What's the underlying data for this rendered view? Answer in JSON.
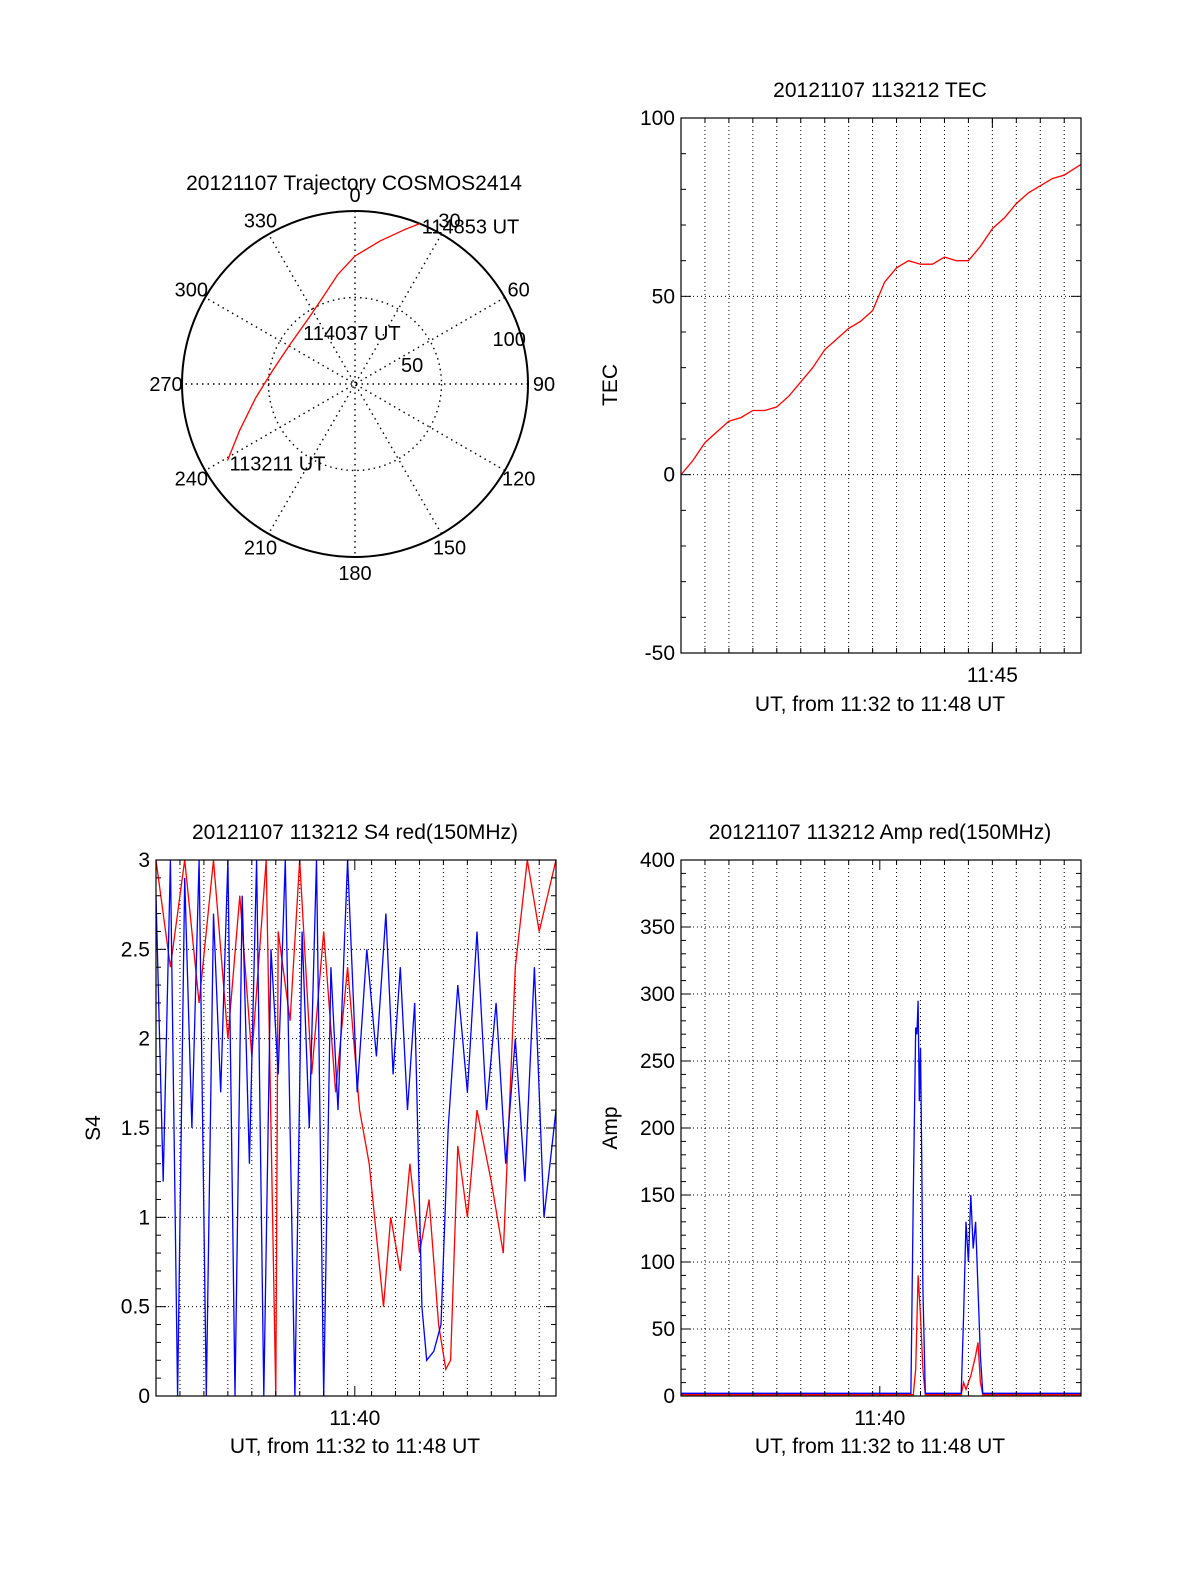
{
  "chart_data": [
    {
      "id": "trajectory",
      "type": "polar",
      "title": "20121107 Trajectory COSMOS2414",
      "radial_max": 100,
      "radial_ticks": [
        50,
        100
      ],
      "angle_labels": [
        "0",
        "30",
        "60",
        "90",
        "120",
        "150",
        "180",
        "210",
        "240",
        "270",
        "300",
        "330"
      ],
      "grid": true,
      "series": [
        {
          "color": "#ff0000",
          "points": [
            {
              "az": 239,
              "zen": 86
            },
            {
              "az": 248,
              "zen": 72
            },
            {
              "az": 262,
              "zen": 58
            },
            {
              "az": 280,
              "zen": 48
            },
            {
              "az": 301,
              "zen": 44
            },
            {
              "az": 323,
              "zen": 46
            },
            {
              "az": 339,
              "zen": 53
            },
            {
              "az": 351,
              "zen": 64
            },
            {
              "az": 0,
              "zen": 74
            },
            {
              "az": 10,
              "zen": 84
            },
            {
              "az": 18,
              "zen": 94
            },
            {
              "az": 22,
              "zen": 100
            }
          ]
        }
      ],
      "annotations": [
        {
          "text": "113211 UT",
          "az": 239,
          "zen": 86
        },
        {
          "text": "114037 UT",
          "az": 315,
          "zen": 44
        },
        {
          "text": "114853 UT",
          "az": 22,
          "zen": 100
        }
      ]
    },
    {
      "id": "tec",
      "type": "line",
      "title": "20121107 113212 TEC",
      "xlabel": "UT, from 11:32 to 11:48 UT",
      "ylabel": "TEC",
      "xlim": [
        0,
        16.7
      ],
      "ylim": [
        -50,
        100
      ],
      "yticks": [
        -50,
        0,
        50,
        100
      ],
      "xticks": [
        {
          "x": 13,
          "label": "11:45"
        }
      ],
      "grid": true,
      "series": [
        {
          "color": "#ff0000",
          "points": [
            [
              0,
              0
            ],
            [
              0.5,
              4
            ],
            [
              1,
              9
            ],
            [
              1.5,
              12
            ],
            [
              2,
              15
            ],
            [
              2.5,
              16
            ],
            [
              3,
              18
            ],
            [
              3.5,
              18
            ],
            [
              4,
              19
            ],
            [
              4.5,
              22
            ],
            [
              5,
              26
            ],
            [
              5.5,
              30
            ],
            [
              6,
              35
            ],
            [
              6.5,
              38
            ],
            [
              7,
              41
            ],
            [
              7.5,
              43
            ],
            [
              8,
              46
            ],
            [
              8.5,
              54
            ],
            [
              9,
              58
            ],
            [
              9.5,
              60
            ],
            [
              10,
              59
            ],
            [
              10.5,
              59
            ],
            [
              11,
              61
            ],
            [
              11.5,
              60
            ],
            [
              12,
              60
            ],
            [
              12.5,
              64
            ],
            [
              13,
              69
            ],
            [
              13.5,
              72
            ],
            [
              14,
              76
            ],
            [
              14.5,
              79
            ],
            [
              15,
              81
            ],
            [
              15.5,
              83
            ],
            [
              16,
              84
            ],
            [
              16.7,
              87
            ]
          ]
        }
      ]
    },
    {
      "id": "s4",
      "type": "line",
      "title": "20121107 113212 S4 red(150MHz)",
      "xlabel": "UT, from 11:32 to 11:48 UT",
      "ylabel": "S4",
      "xlim": [
        0,
        16.7
      ],
      "ylim": [
        0,
        3
      ],
      "yticks": [
        0,
        0.5,
        1,
        1.5,
        2,
        2.5,
        3
      ],
      "xticks": [
        {
          "x": 8.3,
          "label": "11:40"
        }
      ],
      "grid": true,
      "series": [
        {
          "color": "#ff0000",
          "points": [
            [
              0,
              3
            ],
            [
              0.6,
              2.4
            ],
            [
              1.2,
              3
            ],
            [
              1.8,
              2.2
            ],
            [
              2.4,
              3
            ],
            [
              3,
              2.0
            ],
            [
              3.5,
              2.8
            ],
            [
              4,
              1.9
            ],
            [
              4.6,
              3
            ],
            [
              5,
              0
            ],
            [
              5.1,
              2.6
            ],
            [
              5.6,
              2.1
            ],
            [
              6,
              3
            ],
            [
              6.5,
              1.8
            ],
            [
              7,
              2.6
            ],
            [
              7.5,
              1.7
            ],
            [
              8,
              2.4
            ],
            [
              8.5,
              1.6
            ],
            [
              8.9,
              1.3
            ],
            [
              9.2,
              0.9
            ],
            [
              9.5,
              0.5
            ],
            [
              9.8,
              1.0
            ],
            [
              10.2,
              0.7
            ],
            [
              10.6,
              1.3
            ],
            [
              11,
              0.8
            ],
            [
              11.4,
              1.1
            ],
            [
              11.8,
              0.4
            ],
            [
              12.1,
              0.15
            ],
            [
              12.3,
              0.2
            ],
            [
              12.6,
              1.4
            ],
            [
              13,
              1.0
            ],
            [
              13.4,
              1.6
            ],
            [
              14,
              1.2
            ],
            [
              14.5,
              0.8
            ],
            [
              15,
              2.4
            ],
            [
              15.5,
              3
            ],
            [
              16,
              2.6
            ],
            [
              16.7,
              3
            ]
          ]
        },
        {
          "color": "#0000ff",
          "points": [
            [
              0,
              2.8
            ],
            [
              0.3,
              1.2
            ],
            [
              0.6,
              3
            ],
            [
              0.9,
              0
            ],
            [
              1.2,
              2.9
            ],
            [
              1.5,
              1.5
            ],
            [
              1.8,
              3
            ],
            [
              2.1,
              0
            ],
            [
              2.4,
              2.7
            ],
            [
              2.7,
              1.7
            ],
            [
              3,
              3
            ],
            [
              3.3,
              0
            ],
            [
              3.6,
              2.8
            ],
            [
              3.9,
              1.3
            ],
            [
              4.2,
              3
            ],
            [
              4.5,
              0
            ],
            [
              4.8,
              2.5
            ],
            [
              5.1,
              1.8
            ],
            [
              5.4,
              3
            ],
            [
              5.8,
              0
            ],
            [
              6.1,
              2.6
            ],
            [
              6.4,
              1.5
            ],
            [
              6.7,
              3
            ],
            [
              7,
              0
            ],
            [
              7.3,
              2.4
            ],
            [
              7.6,
              1.6
            ],
            [
              8,
              3
            ],
            [
              8.4,
              1.7
            ],
            [
              8.8,
              2.5
            ],
            [
              9.2,
              1.9
            ],
            [
              9.6,
              2.7
            ],
            [
              9.9,
              1.8
            ],
            [
              10.2,
              2.4
            ],
            [
              10.5,
              1.6
            ],
            [
              10.8,
              2.2
            ],
            [
              11.1,
              0.5
            ],
            [
              11.3,
              0.2
            ],
            [
              11.6,
              0.25
            ],
            [
              11.9,
              0.4
            ],
            [
              12.2,
              1.5
            ],
            [
              12.6,
              2.3
            ],
            [
              13,
              1.7
            ],
            [
              13.4,
              2.6
            ],
            [
              13.8,
              1.6
            ],
            [
              14.2,
              2.2
            ],
            [
              14.6,
              1.3
            ],
            [
              15,
              2.0
            ],
            [
              15.4,
              1.2
            ],
            [
              15.8,
              2.4
            ],
            [
              16.2,
              1.0
            ],
            [
              16.7,
              1.6
            ]
          ]
        }
      ]
    },
    {
      "id": "amp",
      "type": "line",
      "title": "20121107 113212 Amp red(150MHz)",
      "xlabel": "UT, from 11:32 to 11:48 UT",
      "ylabel": "Amp",
      "xlim": [
        0,
        16.7
      ],
      "ylim": [
        0,
        400
      ],
      "yticks": [
        0,
        50,
        100,
        150,
        200,
        250,
        300,
        350,
        400
      ],
      "xticks": [
        {
          "x": 8.3,
          "label": "11:40"
        }
      ],
      "grid": true,
      "series": [
        {
          "color": "#ff0000",
          "points": [
            [
              0,
              1
            ],
            [
              9.7,
              1
            ],
            [
              9.8,
              20
            ],
            [
              9.9,
              90
            ],
            [
              10,
              60
            ],
            [
              10.1,
              20
            ],
            [
              10.2,
              1
            ],
            [
              11.7,
              1
            ],
            [
              11.8,
              10
            ],
            [
              11.9,
              5
            ],
            [
              12.1,
              15
            ],
            [
              12.3,
              30
            ],
            [
              12.4,
              40
            ],
            [
              12.5,
              10
            ],
            [
              12.6,
              1
            ],
            [
              16.7,
              1
            ]
          ]
        },
        {
          "color": "#0000ff",
          "points": [
            [
              0,
              2
            ],
            [
              9.6,
              2
            ],
            [
              9.7,
              150
            ],
            [
              9.8,
              275
            ],
            [
              9.85,
              270
            ],
            [
              9.9,
              295
            ],
            [
              9.95,
              220
            ],
            [
              10,
              260
            ],
            [
              10.05,
              180
            ],
            [
              10.1,
              80
            ],
            [
              10.2,
              2
            ],
            [
              11.7,
              2
            ],
            [
              11.8,
              60
            ],
            [
              11.9,
              130
            ],
            [
              12,
              100
            ],
            [
              12.1,
              150
            ],
            [
              12.2,
              110
            ],
            [
              12.3,
              130
            ],
            [
              12.4,
              80
            ],
            [
              12.5,
              30
            ],
            [
              12.6,
              2
            ],
            [
              16.7,
              2
            ]
          ]
        }
      ]
    }
  ]
}
